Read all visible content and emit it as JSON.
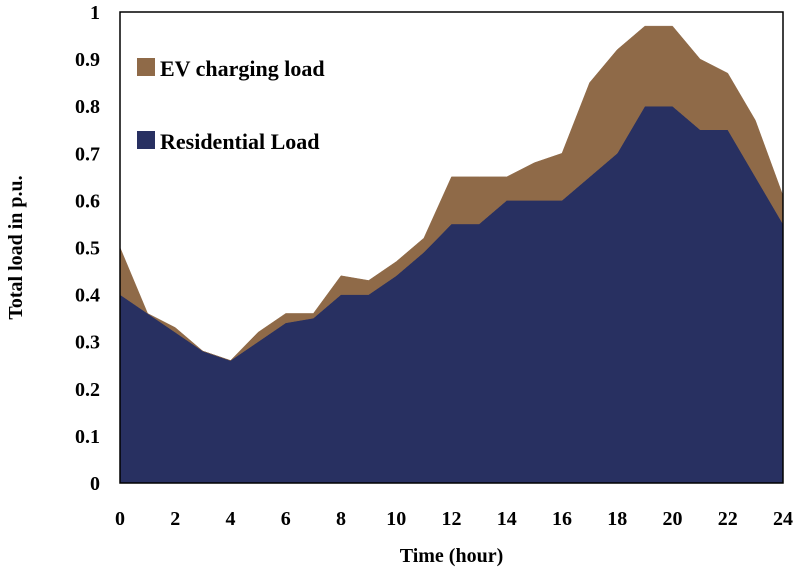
{
  "chart_data": {
    "type": "area",
    "stacked": true,
    "x": [
      0,
      1,
      2,
      3,
      4,
      5,
      6,
      7,
      8,
      9,
      10,
      11,
      12,
      13,
      14,
      15,
      16,
      17,
      18,
      19,
      20,
      21,
      22,
      23,
      24
    ],
    "series": [
      {
        "name": "Residential Load",
        "color": "#283061",
        "values": [
          0.4,
          0.36,
          0.32,
          0.28,
          0.26,
          0.3,
          0.34,
          0.35,
          0.4,
          0.4,
          0.44,
          0.49,
          0.55,
          0.55,
          0.6,
          0.6,
          0.6,
          0.65,
          0.7,
          0.8,
          0.8,
          0.75,
          0.75,
          0.65,
          0.55
        ]
      },
      {
        "name": "EV charging load",
        "color": "#8f6a48",
        "values": [
          0.1,
          0.0,
          0.01,
          0.0,
          0.0,
          0.02,
          0.02,
          0.01,
          0.04,
          0.03,
          0.03,
          0.03,
          0.1,
          0.1,
          0.05,
          0.08,
          0.1,
          0.2,
          0.22,
          0.17,
          0.17,
          0.15,
          0.12,
          0.12,
          0.06
        ]
      }
    ],
    "xlabel": "Time (hour)",
    "ylabel": "Total load in p.u.",
    "xlim": [
      0,
      24
    ],
    "ylim": [
      0,
      1
    ],
    "xticks": [
      0,
      2,
      4,
      6,
      8,
      10,
      12,
      14,
      16,
      18,
      20,
      22,
      24
    ],
    "xtick_labels": [
      "0",
      "2",
      "4",
      "6",
      "8",
      "10",
      "12",
      "14",
      "16",
      "18",
      "20",
      "22",
      "24"
    ],
    "yticks": [
      0,
      0.1,
      0.2,
      0.3,
      0.4,
      0.5,
      0.6,
      0.7,
      0.8,
      0.9,
      1
    ],
    "ytick_labels": [
      "0",
      "0.1",
      "0.2",
      "0.3",
      "0.4",
      "0.5",
      "0.6",
      "0.7",
      "0.8",
      "0.9",
      "1"
    ],
    "grid": false,
    "legend_position": "top-left",
    "legend": [
      {
        "label": "EV charging load",
        "color": "#8f6a48"
      },
      {
        "label": "Residential Load",
        "color": "#283061"
      }
    ]
  }
}
